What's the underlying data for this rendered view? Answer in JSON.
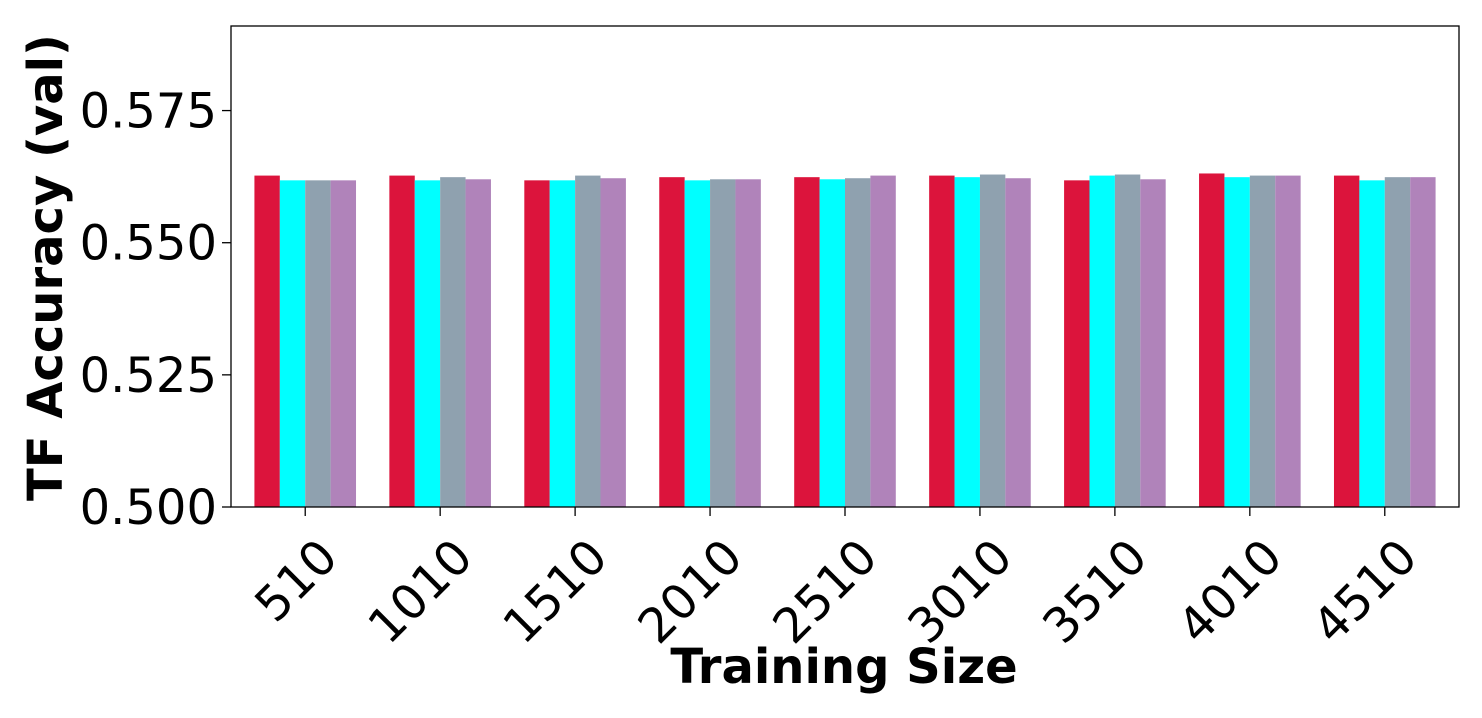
{
  "chart_data": {
    "type": "bar",
    "xlabel": "Training Size",
    "ylabel": "TF Accuracy (val)",
    "categories": [
      "510",
      "1010",
      "1510",
      "2010",
      "2510",
      "3010",
      "3510",
      "4010",
      "4510"
    ],
    "series": [
      {
        "color": "#DC143C",
        "values": [
          0.5627,
          0.5627,
          0.5618,
          0.5624,
          0.5624,
          0.5627,
          0.5618,
          0.5631,
          0.5627
        ]
      },
      {
        "color": "#00FFFF",
        "values": [
          0.5618,
          0.5618,
          0.5618,
          0.5618,
          0.562,
          0.5624,
          0.5627,
          0.5624,
          0.5618
        ]
      },
      {
        "color": "#8FA1AF",
        "values": [
          0.5618,
          0.5624,
          0.5627,
          0.562,
          0.5622,
          0.5629,
          0.5629,
          0.5627,
          0.5624
        ]
      },
      {
        "color": "#B083BA",
        "values": [
          0.5618,
          0.562,
          0.5622,
          0.562,
          0.5627,
          0.5622,
          0.562,
          0.5627,
          0.5624
        ]
      }
    ],
    "ylim": [
      0.5,
      0.591
    ],
    "yticks": [
      0.5,
      0.525,
      0.55,
      0.575
    ],
    "ytick_labels": [
      "0.500",
      "0.525",
      "0.550",
      "0.575"
    ],
    "grid": false,
    "legend": "none"
  }
}
